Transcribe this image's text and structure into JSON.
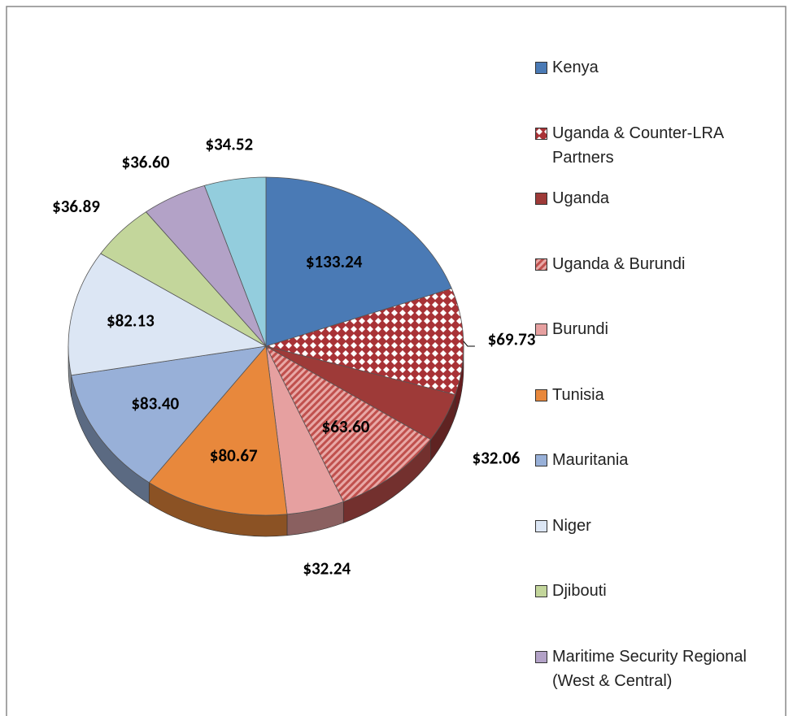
{
  "chart_data": {
    "type": "pie3d",
    "categories": [
      "Kenya",
      "Uganda & Counter-LRA Partners",
      "Uganda",
      "Uganda & Burundi",
      "Burundi",
      "Tunisia",
      "Mauritania",
      "Niger",
      "Djibouti",
      "Maritime Security Regional (West & Central)",
      null
    ],
    "values": [
      133.24,
      69.73,
      32.06,
      63.6,
      32.24,
      80.67,
      83.4,
      82.13,
      36.89,
      36.6,
      34.52
    ],
    "value_labels": [
      "$133.24",
      "$69.73",
      "$32.06",
      "$63.60",
      "$32.24",
      "$80.67",
      "$83.40",
      "$82.13",
      "$36.89",
      "$36.60",
      "$34.52"
    ],
    "colors": [
      "#4a7ab5",
      "#a83236",
      "#9e3a38",
      "#c0504d",
      "#e6a0a0",
      "#e8883c",
      "#98b0d8",
      "#dce6f4",
      "#c3d69b",
      "#b3a2c7",
      "#93cddd"
    ],
    "patterns": [
      null,
      "checker",
      null,
      "hatch",
      null,
      null,
      null,
      null,
      null,
      null,
      null
    ],
    "legend": "right"
  }
}
